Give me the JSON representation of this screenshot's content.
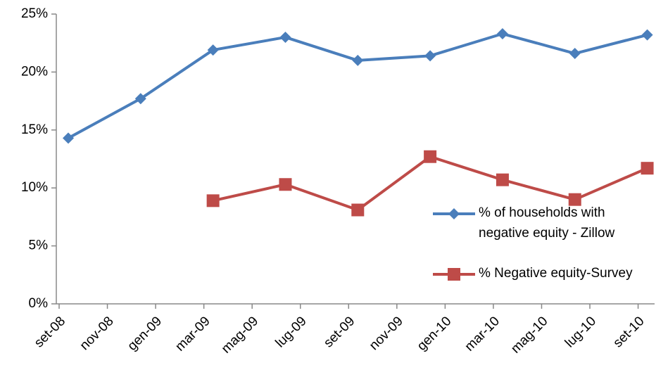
{
  "chart_data": {
    "type": "line",
    "categories": [
      "set-08",
      null,
      "nov-08",
      null,
      "gen-09",
      null,
      "mar-09",
      null,
      "mag-09",
      null,
      "lug-09",
      null,
      "set-09",
      null,
      "nov-09",
      null,
      "gen-10",
      null,
      "mar-10",
      null,
      "mag-10",
      null,
      "lug-10",
      null,
      "set-10"
    ],
    "series": [
      {
        "name": "% of households with negative equity - Zillow",
        "color": "#4a7ebb",
        "marker": "diamond",
        "values": [
          14.3,
          null,
          null,
          17.7,
          null,
          null,
          21.9,
          null,
          null,
          23.0,
          null,
          null,
          21.0,
          null,
          null,
          21.4,
          null,
          null,
          23.3,
          null,
          null,
          21.6,
          null,
          null,
          23.2
        ]
      },
      {
        "name": "% Negative equity-Survey",
        "color": "#be4b48",
        "marker": "square",
        "values": [
          null,
          null,
          null,
          null,
          null,
          null,
          8.9,
          null,
          null,
          10.3,
          null,
          null,
          8.1,
          null,
          null,
          12.7,
          null,
          null,
          10.7,
          null,
          null,
          9.0,
          null,
          null,
          11.7
        ]
      }
    ],
    "ylim": [
      0,
      25
    ],
    "yticks": [
      {
        "value": 0,
        "label": "0%"
      },
      {
        "value": 5,
        "label": "5%"
      },
      {
        "value": 10,
        "label": "10%"
      },
      {
        "value": 15,
        "label": "15%"
      },
      {
        "value": 20,
        "label": "20%"
      },
      {
        "value": 25,
        "label": "25%"
      }
    ],
    "grid": false,
    "legend": "right"
  }
}
